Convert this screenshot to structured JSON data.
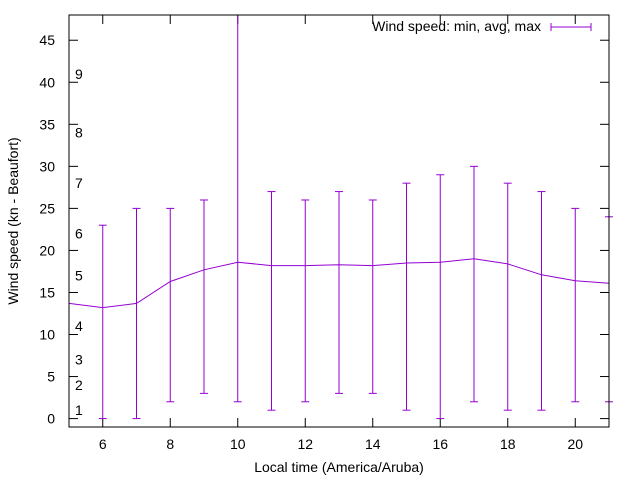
{
  "chart_data": {
    "type": "line",
    "title": "",
    "xlabel": "Local time (America/Aruba)",
    "ylabel": "Wind speed (kn - Beaufort)",
    "xlim": [
      5,
      21
    ],
    "ylim": [
      -1,
      48
    ],
    "x_ticks": [
      6,
      8,
      10,
      12,
      14,
      16,
      18,
      20
    ],
    "y_ticks": [
      0,
      5,
      10,
      15,
      20,
      25,
      30,
      35,
      40,
      45
    ],
    "beaufort_labels": [
      {
        "label": "1",
        "knots": 1
      },
      {
        "label": "2",
        "knots": 4
      },
      {
        "label": "3",
        "knots": 7
      },
      {
        "label": "4",
        "knots": 11
      },
      {
        "label": "5",
        "knots": 17
      },
      {
        "label": "6",
        "knots": 22
      },
      {
        "label": "7",
        "knots": 28
      },
      {
        "label": "8",
        "knots": 34
      },
      {
        "label": "9",
        "knots": 41
      }
    ],
    "legend": {
      "label": "Wind speed: min, avg, max",
      "position": "top-right"
    },
    "color": "#9400d3",
    "series": [
      {
        "name": "Wind speed: min, avg, max",
        "x": [
          5,
          6,
          7,
          8,
          9,
          10,
          11,
          12,
          13,
          14,
          15,
          16,
          17,
          18,
          19,
          20,
          21
        ],
        "avg": [
          13.7,
          13.2,
          13.7,
          16.3,
          17.7,
          18.6,
          18.2,
          18.2,
          18.3,
          18.2,
          18.5,
          18.6,
          19.0,
          18.4,
          17.1,
          16.4,
          16.1
        ],
        "min": [
          null,
          0,
          0,
          2,
          3,
          2,
          1,
          2,
          3,
          3,
          1,
          0,
          2,
          1,
          1,
          2,
          2
        ],
        "max": [
          null,
          23,
          25,
          25,
          26,
          48,
          27,
          26,
          27,
          26,
          28,
          29,
          30,
          28,
          27,
          25,
          24
        ]
      }
    ]
  }
}
